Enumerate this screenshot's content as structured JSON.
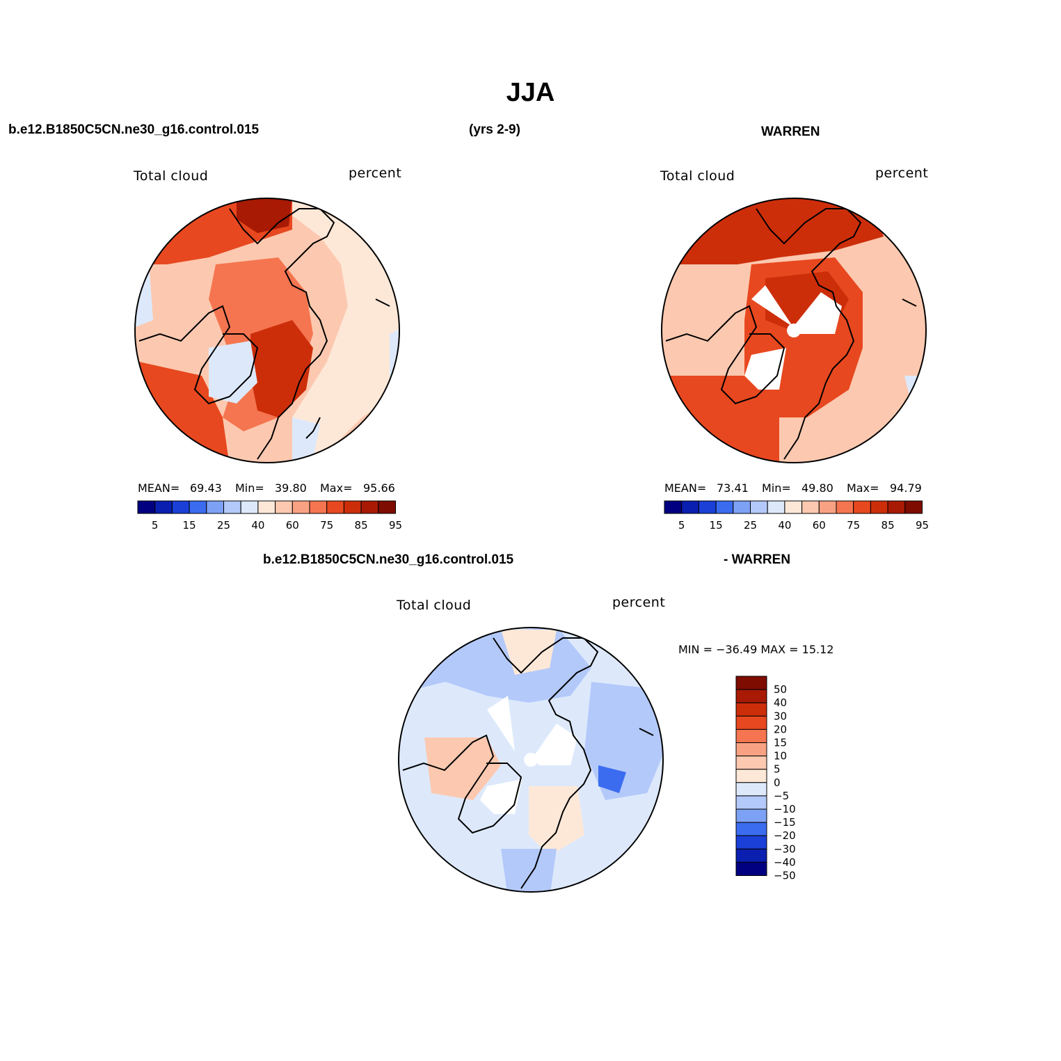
{
  "title": "JJA",
  "header_left": "b.e12.B1850C5CN.ne30_g16.control.015",
  "header_center": "(yrs 2-9)",
  "header_right": "WARREN",
  "diff_header_left": "b.e12.B1850C5CN.ne30_g16.control.015",
  "diff_header_right": "- WARREN",
  "colors": {
    "abs_scale": [
      "#000080",
      "#0a1fb0",
      "#1a40d8",
      "#3b6cf0",
      "#7da2f5",
      "#b3c9fa",
      "#dde9fb",
      "#fde8d8",
      "#fcc9b0",
      "#f9a283",
      "#f57550",
      "#e8481f",
      "#cd2e0a",
      "#a81a03",
      "#7e0c00"
    ],
    "diff_scale_top_to_bottom": [
      "#7e0c00",
      "#a81a03",
      "#cd2e0a",
      "#e8481f",
      "#f57550",
      "#f9a283",
      "#fcc9b0",
      "#fde8d8",
      "#dde9fb",
      "#b3c9fa",
      "#7da2f5",
      "#3b6cf0",
      "#1a40d8",
      "#0a1fb0",
      "#000080"
    ]
  },
  "panels": [
    {
      "id": "model",
      "variable": "Total cloud",
      "units": "percent",
      "stats": {
        "mean_label": "MEAN=",
        "mean": "69.43",
        "min_label": "Min=",
        "min": "39.80",
        "max_label": "Max=",
        "max": "95.66"
      },
      "colorbar_ticks": [
        "5",
        "15",
        "25",
        "40",
        "60",
        "75",
        "85",
        "95"
      ]
    },
    {
      "id": "obs",
      "variable": "Total cloud",
      "units": "percent",
      "stats": {
        "mean_label": "MEAN=",
        "mean": "73.41",
        "min_label": "Min=",
        "min": "49.80",
        "max_label": "Max=",
        "max": "94.79"
      },
      "colorbar_ticks": [
        "5",
        "15",
        "25",
        "40",
        "60",
        "75",
        "85",
        "95"
      ]
    },
    {
      "id": "diff",
      "variable": "Total cloud",
      "units": "percent",
      "minmax_text": "MIN = −36.49 MAX =  15.12",
      "colorbar_labels": [
        "50",
        "40",
        "30",
        "20",
        "15",
        "10",
        "5",
        "0",
        "−5",
        "−10",
        "−15",
        "−20",
        "−30",
        "−40",
        "−50"
      ]
    }
  ]
}
